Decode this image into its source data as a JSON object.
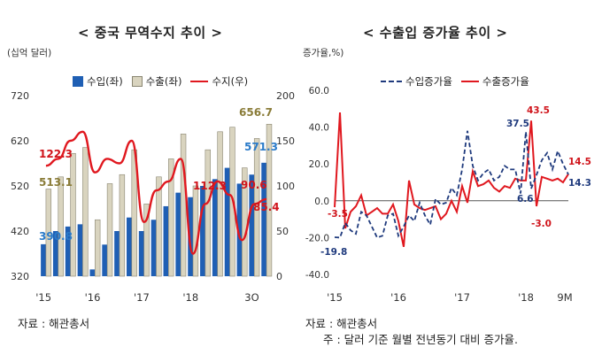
{
  "left": {
    "title": "< 중국 무역수지 추이 >",
    "unit": "(십억 달러)",
    "source": "자료 : 해관총서",
    "colors": {
      "import": "#1f5fb4",
      "export": "#d9d4bf",
      "balance": "#e0181f"
    },
    "legend": {
      "import": "수입(좌)",
      "export": "수출(좌)",
      "balance": "수지(우)"
    },
    "y_left_ticks": [
      "720",
      "620",
      "520",
      "420",
      "320"
    ],
    "y_right_ticks": [
      "200",
      "150",
      "100",
      "50",
      "0"
    ],
    "x_labels": [
      "'15",
      "'16",
      "'17",
      "'18",
      "3Q"
    ],
    "annotations": {
      "import_start": "390.8",
      "export_start": "513.1",
      "balance_start": "122.3",
      "export_end": "656.7",
      "import_end": "571.3",
      "balance_mid": "112.3",
      "balance_end_a": "90.6",
      "balance_end_b": "85.4"
    }
  },
  "right": {
    "title": "< 수출입 증가율 추이 >",
    "unit": "증가율,%)",
    "source": "자료 : 해관총서",
    "note": "주 : 달러 기준 월별 전년동기 대비 증가율.",
    "colors": {
      "import": "#1f3a7d",
      "export": "#e0181f"
    },
    "legend": {
      "import": "수입증가율",
      "export": "수출증가율"
    },
    "y_ticks": [
      "60.0",
      "40.0",
      "20.0",
      "0.0",
      "-20.0",
      "-40.0"
    ],
    "x_labels": [
      "'15",
      "'16",
      "'17",
      "'18",
      "9M"
    ],
    "annotations": {
      "exp_start": "-3.5",
      "imp_start": "-19.8",
      "imp_peak": "37.5",
      "exp_peak": "43.5",
      "imp_low": "6.6",
      "exp_low": "-3.0",
      "exp_end": "14.5",
      "imp_end": "14.3"
    }
  },
  "chart_data": [
    {
      "type": "bar",
      "title": "< 중국 무역수지 추이 >",
      "ylabel": "(십억 달러)",
      "ylim": [
        320,
        720
      ],
      "y2lim": [
        0,
        200
      ],
      "categories": [
        "'15 Q1",
        "'15 Q2",
        "'15 Q3",
        "'15 Q4",
        "'16 Q1",
        "'16 Q2",
        "'16 Q3",
        "'16 Q4",
        "'17 Q1",
        "'17 Q2",
        "'17 Q3",
        "'17 Q4",
        "'18 Q1",
        "'18 Q2",
        "'18 Q3",
        "'18 Q4",
        "'19 Q1",
        "'19 Q2",
        "'19 Q3"
      ],
      "series": [
        {
          "name": "수입(좌)",
          "kind": "bar",
          "axis": "left",
          "values": [
            390.8,
            420,
            430,
            435,
            335,
            390,
            420,
            450,
            420,
            445,
            475,
            505,
            495,
            520,
            535,
            560,
            525,
            545,
            571.3
          ]
        },
        {
          "name": "수출(좌)",
          "kind": "bar",
          "axis": "left",
          "values": [
            513.1,
            540,
            592,
            605,
            445,
            525,
            545,
            600,
            480,
            540,
            580,
            635,
            520,
            600,
            640,
            650,
            560,
            625,
            656.7
          ]
        },
        {
          "name": "수지(우)",
          "kind": "line",
          "axis": "right",
          "values": [
            122.3,
            130,
            150,
            160,
            115,
            130,
            125,
            150,
            60,
            95,
            105,
            130,
            25,
            80,
            105,
            90,
            40,
            80,
            85.4
          ]
        }
      ]
    },
    {
      "type": "line",
      "title": "< 수출입 증가율 추이 >",
      "ylabel": "증가율,%)",
      "ylim": [
        -40,
        60
      ],
      "x": [
        "2015-01",
        "2015-02",
        "2015-03",
        "2015-04",
        "2015-05",
        "2015-06",
        "2015-07",
        "2015-08",
        "2015-09",
        "2015-10",
        "2015-11",
        "2015-12",
        "2016-01",
        "2016-02",
        "2016-03",
        "2016-04",
        "2016-05",
        "2016-06",
        "2016-07",
        "2016-08",
        "2016-09",
        "2016-10",
        "2016-11",
        "2016-12",
        "2017-01",
        "2017-02",
        "2017-03",
        "2017-04",
        "2017-05",
        "2017-06",
        "2017-07",
        "2017-08",
        "2017-09",
        "2017-10",
        "2017-11",
        "2017-12",
        "2018-01",
        "2018-02",
        "2018-03",
        "2018-04",
        "2018-05",
        "2018-06",
        "2018-07",
        "2018-08",
        "2018-09"
      ],
      "series": [
        {
          "name": "수입증가율",
          "values": [
            -19.8,
            -20,
            -12,
            -16,
            -18,
            -6,
            -8,
            -14,
            -20,
            -19,
            -8,
            -7,
            -19,
            -14,
            -8,
            -11,
            -1,
            -8,
            -13,
            1,
            -2,
            -1,
            7,
            3,
            17,
            38,
            19,
            11,
            15,
            17,
            11,
            13,
            19,
            17,
            17,
            4,
            37.5,
            6.6,
            14,
            22,
            26,
            17,
            27,
            20,
            14.3
          ]
        },
        {
          "name": "수출증가율",
          "values": [
            -3.5,
            48,
            -15,
            -6,
            -3,
            3,
            -8,
            -6,
            -4,
            -7,
            -7,
            -2,
            -11,
            -25,
            11,
            -2,
            -4,
            -5,
            -4,
            -3,
            -10,
            -7,
            0,
            -6,
            8,
            -1,
            16,
            8,
            9,
            11,
            7,
            5,
            8,
            7,
            12,
            11,
            11,
            43.5,
            -3.0,
            13,
            12,
            11,
            12,
            10,
            14.5
          ]
        }
      ]
    }
  ]
}
